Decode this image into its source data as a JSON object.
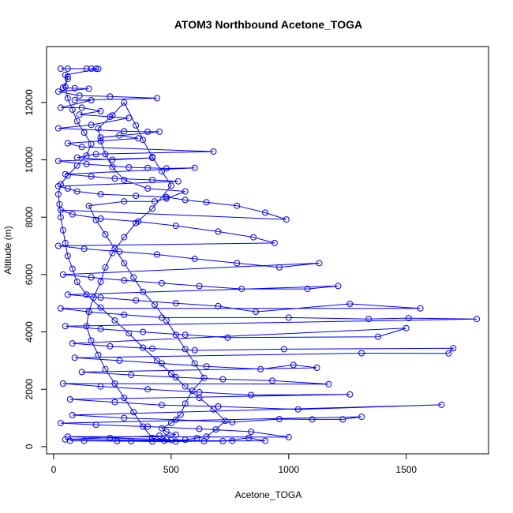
{
  "chart_data": {
    "type": "scatter",
    "title": "ATOM3 Northbound Acetone_TOGA",
    "xlabel": "Acetone_TOGA",
    "ylabel": "Altitude (m)",
    "xlim": [
      -30,
      1850
    ],
    "ylim": [
      -250,
      13950
    ],
    "x_ticks": [
      0,
      500,
      1000,
      1500
    ],
    "y_ticks": [
      0,
      2000,
      4000,
      6000,
      8000,
      10000,
      12000
    ],
    "grid": false,
    "legend": "none",
    "connected": true,
    "marker": "open-circle",
    "series": [
      {
        "color": "#0000ff",
        "points": [
          [
            30,
            13180
          ],
          [
            60,
            13180
          ],
          [
            140,
            13180
          ],
          [
            160,
            13180
          ],
          [
            180,
            13180
          ],
          [
            190,
            13170
          ],
          [
            50,
            12960
          ],
          [
            60,
            12820
          ],
          [
            40,
            12520
          ],
          [
            90,
            12500
          ],
          [
            150,
            12480
          ],
          [
            20,
            12380
          ],
          [
            110,
            12240
          ],
          [
            240,
            12210
          ],
          [
            440,
            12150
          ],
          [
            90,
            12080
          ],
          [
            160,
            12080
          ],
          [
            30,
            11820
          ],
          [
            120,
            11820
          ],
          [
            200,
            11700
          ],
          [
            110,
            11580
          ],
          [
            240,
            11500
          ],
          [
            320,
            11460
          ],
          [
            160,
            11220
          ],
          [
            20,
            11100
          ],
          [
            300,
            11000
          ],
          [
            400,
            10980
          ],
          [
            450,
            10980
          ],
          [
            200,
            10780
          ],
          [
            280,
            10850
          ],
          [
            360,
            10750
          ],
          [
            60,
            10580
          ],
          [
            120,
            10450
          ],
          [
            680,
            10290
          ],
          [
            180,
            10200
          ],
          [
            100,
            10080
          ],
          [
            250,
            10000
          ],
          [
            420,
            10070
          ],
          [
            20,
            9960
          ],
          [
            140,
            9850
          ],
          [
            320,
            9740
          ],
          [
            400,
            9720
          ],
          [
            480,
            9700
          ],
          [
            600,
            9720
          ],
          [
            50,
            9500
          ],
          [
            160,
            9420
          ],
          [
            260,
            9350
          ],
          [
            420,
            9300
          ],
          [
            530,
            9250
          ],
          [
            20,
            9080
          ],
          [
            60,
            9000
          ],
          [
            100,
            8900
          ],
          [
            200,
            8800
          ],
          [
            350,
            8750
          ],
          [
            480,
            8700
          ],
          [
            560,
            8600
          ],
          [
            650,
            8520
          ],
          [
            780,
            8400
          ],
          [
            900,
            8160
          ],
          [
            990,
            7920
          ],
          [
            30,
            8250
          ],
          [
            80,
            8100
          ],
          [
            200,
            7950
          ],
          [
            360,
            7850
          ],
          [
            520,
            7700
          ],
          [
            700,
            7500
          ],
          [
            850,
            7300
          ],
          [
            940,
            7100
          ],
          [
            20,
            7000
          ],
          [
            130,
            6900
          ],
          [
            280,
            6800
          ],
          [
            440,
            6700
          ],
          [
            600,
            6550
          ],
          [
            780,
            6400
          ],
          [
            960,
            6250
          ],
          [
            1130,
            6400
          ],
          [
            40,
            6000
          ],
          [
            160,
            5900
          ],
          [
            300,
            5800
          ],
          [
            460,
            5700
          ],
          [
            620,
            5600
          ],
          [
            800,
            5500
          ],
          [
            1080,
            5500
          ],
          [
            1210,
            5600
          ],
          [
            60,
            5300
          ],
          [
            200,
            5200
          ],
          [
            350,
            5100
          ],
          [
            520,
            5000
          ],
          [
            700,
            4900
          ],
          [
            860,
            4700
          ],
          [
            1260,
            4980
          ],
          [
            1560,
            4820
          ],
          [
            30,
            4820
          ],
          [
            150,
            4700
          ],
          [
            300,
            4600
          ],
          [
            460,
            4500
          ],
          [
            1000,
            4500
          ],
          [
            1340,
            4450
          ],
          [
            1510,
            4480
          ],
          [
            1800,
            4450
          ],
          [
            50,
            4200
          ],
          [
            200,
            4100
          ],
          [
            380,
            4000
          ],
          [
            560,
            3900
          ],
          [
            740,
            3800
          ],
          [
            1380,
            3830
          ],
          [
            1500,
            4130
          ],
          [
            80,
            3600
          ],
          [
            240,
            3500
          ],
          [
            420,
            3420
          ],
          [
            600,
            3360
          ],
          [
            980,
            3400
          ],
          [
            1700,
            3430
          ],
          [
            1680,
            3250
          ],
          [
            1310,
            3260
          ],
          [
            90,
            3100
          ],
          [
            280,
            3000
          ],
          [
            460,
            2900
          ],
          [
            650,
            2800
          ],
          [
            880,
            2700
          ],
          [
            1020,
            2850
          ],
          [
            1120,
            2750
          ],
          [
            120,
            2600
          ],
          [
            330,
            2500
          ],
          [
            520,
            2420
          ],
          [
            720,
            2350
          ],
          [
            930,
            2300
          ],
          [
            1170,
            2180
          ],
          [
            40,
            2200
          ],
          [
            200,
            2100
          ],
          [
            400,
            2000
          ],
          [
            620,
            1900
          ],
          [
            840,
            1800
          ],
          [
            1260,
            1820
          ],
          [
            70,
            1650
          ],
          [
            260,
            1550
          ],
          [
            460,
            1450
          ],
          [
            700,
            1400
          ],
          [
            1040,
            1300
          ],
          [
            1650,
            1460
          ],
          [
            80,
            1100
          ],
          [
            300,
            1000
          ],
          [
            520,
            940
          ],
          [
            760,
            850
          ],
          [
            960,
            960
          ],
          [
            1100,
            950
          ],
          [
            1230,
            950
          ],
          [
            1310,
            1040
          ],
          [
            30,
            820
          ],
          [
            180,
            760
          ],
          [
            400,
            700
          ],
          [
            620,
            620
          ],
          [
            840,
            520
          ],
          [
            1000,
            330
          ],
          [
            60,
            350
          ],
          [
            240,
            300
          ],
          [
            480,
            250
          ],
          [
            500,
            230
          ],
          [
            720,
            190
          ],
          [
            830,
            310
          ],
          [
            900,
            200
          ],
          [
            70,
            200
          ],
          [
            130,
            200
          ],
          [
            270,
            190
          ],
          [
            330,
            190
          ],
          [
            420,
            180
          ],
          [
            520,
            180
          ],
          [
            640,
            190
          ],
          [
            760,
            200
          ],
          [
            50,
            250
          ],
          [
            450,
            380
          ],
          [
            520,
            420
          ],
          [
            480,
            520
          ],
          [
            460,
            640
          ],
          [
            500,
            820
          ],
          [
            540,
            1120
          ],
          [
            560,
            1500
          ],
          [
            590,
            1950
          ],
          [
            640,
            2400
          ],
          [
            600,
            2900
          ],
          [
            560,
            3400
          ],
          [
            520,
            3900
          ],
          [
            480,
            4400
          ],
          [
            430,
            4950
          ],
          [
            380,
            5400
          ],
          [
            340,
            5900
          ],
          [
            300,
            6400
          ],
          [
            260,
            6900
          ],
          [
            220,
            7400
          ],
          [
            180,
            7900
          ],
          [
            150,
            8400
          ],
          [
            300,
            8550
          ],
          [
            430,
            8550
          ],
          [
            480,
            8650
          ],
          [
            560,
            8900
          ],
          [
            400,
            9000
          ],
          [
            300,
            9300
          ],
          [
            250,
            9750
          ],
          [
            220,
            10200
          ],
          [
            200,
            10650
          ],
          [
            190,
            11100
          ],
          [
            250,
            11550
          ],
          [
            300,
            12000
          ],
          [
            350,
            11200
          ],
          [
            380,
            10700
          ],
          [
            420,
            10100
          ],
          [
            460,
            9600
          ],
          [
            500,
            9100
          ],
          [
            420,
            8300
          ],
          [
            350,
            7800
          ],
          [
            300,
            7300
          ],
          [
            250,
            6750
          ],
          [
            220,
            6250
          ],
          [
            200,
            5750
          ],
          [
            170,
            5200
          ],
          [
            150,
            4700
          ],
          [
            140,
            4200
          ],
          [
            160,
            3700
          ],
          [
            190,
            3200
          ],
          [
            220,
            2700
          ],
          [
            260,
            2200
          ],
          [
            300,
            1700
          ],
          [
            340,
            1200
          ],
          [
            380,
            700
          ],
          [
            420,
            300
          ],
          [
            470,
            200
          ],
          [
            560,
            240
          ],
          [
            610,
            300
          ],
          [
            650,
            350
          ],
          [
            690,
            600
          ],
          [
            730,
            900
          ],
          [
            680,
            1300
          ],
          [
            620,
            1700
          ],
          [
            560,
            2100
          ],
          [
            500,
            2550
          ],
          [
            440,
            3000
          ],
          [
            380,
            3450
          ],
          [
            320,
            3950
          ],
          [
            260,
            4400
          ],
          [
            200,
            4850
          ],
          [
            140,
            5300
          ],
          [
            100,
            5750
          ],
          [
            80,
            6200
          ],
          [
            60,
            6650
          ],
          [
            50,
            7100
          ],
          [
            40,
            7550
          ],
          [
            30,
            8000
          ],
          [
            25,
            8450
          ],
          [
            20,
            8800
          ],
          [
            30,
            9150
          ],
          [
            60,
            9450
          ],
          [
            100,
            9800
          ],
          [
            140,
            10150
          ],
          [
            160,
            10550
          ],
          [
            130,
            10950
          ],
          [
            100,
            11350
          ],
          [
            80,
            11750
          ],
          [
            60,
            12150
          ],
          [
            50,
            12550
          ],
          [
            60,
            12900
          ]
        ]
      }
    ]
  }
}
